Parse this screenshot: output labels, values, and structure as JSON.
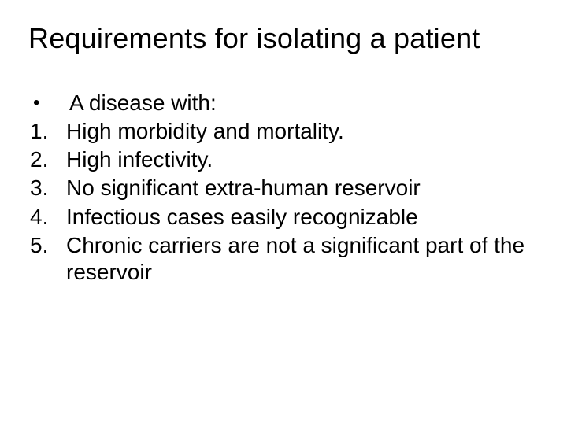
{
  "slide": {
    "background_color": "#ffffff",
    "text_color": "#000000",
    "title": "Requirements for isolating a patient",
    "title_fontsize": 36,
    "body_fontsize": 28,
    "font_family": "Arial",
    "items": [
      {
        "marker": "•",
        "marker_kind": "bullet",
        "text": "A disease with:"
      },
      {
        "marker": "1.",
        "marker_kind": "number",
        "text": "High morbidity and mortality."
      },
      {
        "marker": "2.",
        "marker_kind": "number",
        "text": "High infectivity."
      },
      {
        "marker": "3.",
        "marker_kind": "number",
        "text": "No significant extra-human reservoir"
      },
      {
        "marker": "4.",
        "marker_kind": "number",
        "text": "Infectious cases easily recognizable"
      },
      {
        "marker": "5.",
        "marker_kind": "number",
        "text": "Chronic carriers are not a significant part of the reservoir"
      }
    ]
  }
}
